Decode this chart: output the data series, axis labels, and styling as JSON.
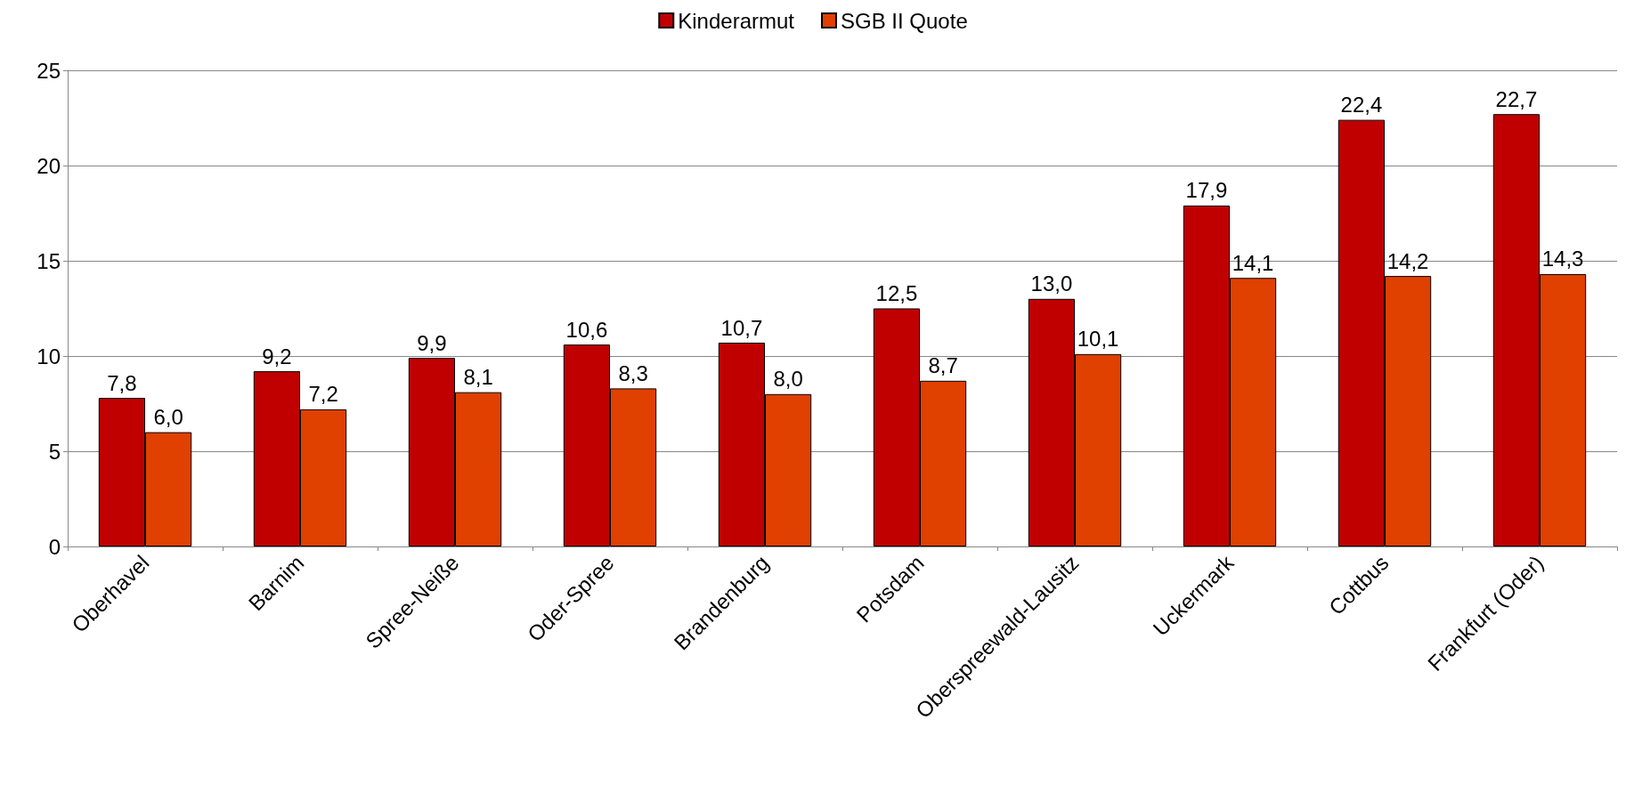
{
  "chart_data": {
    "type": "bar",
    "categories": [
      "Oberhavel",
      "Barnim",
      "Spree-Neiße",
      "Oder-Spree",
      "Brandenburg",
      "Potsdam",
      "Oberspreewald-Lausitz",
      "Uckermark",
      "Cottbus",
      "Frankfurt (Oder)"
    ],
    "series": [
      {
        "name": "Kinderarmut",
        "color": "#c00000",
        "values": [
          7.8,
          9.2,
          9.9,
          10.6,
          10.7,
          12.5,
          13.0,
          17.9,
          22.4,
          22.7
        ],
        "value_labels": [
          "7,8",
          "9,2",
          "9,9",
          "10,6",
          "10,7",
          "12,5",
          "13,0",
          "17,9",
          "22,4",
          "22,7"
        ]
      },
      {
        "name": "SGB II Quote",
        "color": "#e04000",
        "values": [
          6.0,
          7.2,
          8.1,
          8.3,
          8.0,
          8.7,
          10.1,
          14.1,
          14.2,
          14.3
        ],
        "value_labels": [
          "6,0",
          "7,2",
          "8,1",
          "8,3",
          "8,0",
          "8,7",
          "10,1",
          "14,1",
          "14,2",
          "14,3"
        ]
      }
    ],
    "ylim": [
      0,
      25
    ],
    "yticks": [
      0,
      5,
      10,
      15,
      20,
      25
    ],
    "grid": "y",
    "legend": "top"
  }
}
